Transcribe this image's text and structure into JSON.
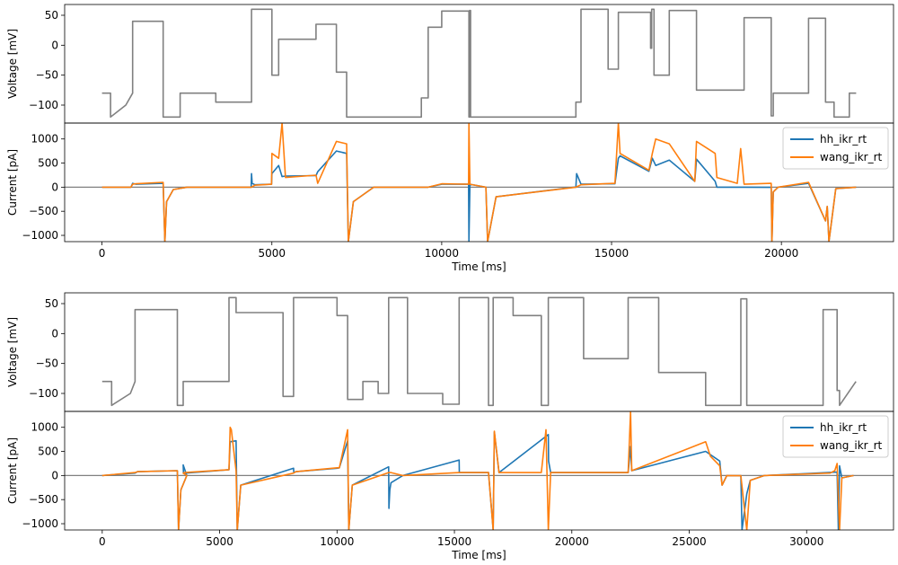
{
  "colors": {
    "voltage": "#808080",
    "series_a": "#1f77b4",
    "series_b": "#ff7f0e",
    "zero_line": "#808080"
  },
  "chart_data": [
    {
      "type": "line",
      "panel": "top-voltage",
      "ylabel": "Voltage [mV]",
      "xlim": [
        -1100,
        23300
      ],
      "ylim": [
        -130,
        68
      ],
      "yticks": [
        -100,
        -50,
        0,
        50
      ],
      "grid": false,
      "series": [
        {
          "color": "#808080",
          "x": [
            0,
            250,
            250,
            700,
            900,
            900,
            1800,
            1800,
            2300,
            2300,
            3350,
            3350,
            4400,
            4400,
            5000,
            5000,
            5200,
            5200,
            6300,
            6300,
            6900,
            6900,
            7200,
            7200,
            9400,
            9400,
            9600,
            9600,
            10000,
            10000,
            10800,
            10800,
            10820,
            10820,
            10850,
            10850,
            11300,
            11300,
            13950,
            13950,
            14100,
            14100,
            14900,
            14900,
            15200,
            15200,
            16150,
            16150,
            16180,
            16180,
            16250,
            16250,
            16700,
            16700,
            17500,
            17500,
            18050,
            18050,
            18900,
            18900,
            19700,
            19700,
            19760,
            19760,
            20800,
            20800,
            21300,
            21300,
            21550,
            21550,
            22000,
            22000,
            22200
          ],
          "y": [
            -80,
            -80,
            -120,
            -100,
            -80,
            40,
            40,
            -120,
            -120,
            -80,
            -80,
            -95,
            -95,
            60,
            60,
            -50,
            -50,
            10,
            10,
            35,
            35,
            -45,
            -45,
            -120,
            -120,
            -88,
            -88,
            30,
            30,
            57,
            57,
            -120,
            -120,
            58,
            58,
            -120,
            -120,
            -120,
            -120,
            -95,
            -95,
            60,
            60,
            -40,
            -40,
            55,
            55,
            -5,
            -5,
            60,
            60,
            -50,
            -50,
            58,
            58,
            -75,
            -75,
            -75,
            -75,
            46,
            46,
            -118,
            -118,
            -80,
            -80,
            45,
            45,
            -95,
            -95,
            -120,
            -120,
            -80,
            -80
          ]
        }
      ]
    },
    {
      "type": "line",
      "panel": "top-current",
      "ylabel": "Current [pA]",
      "xlabel": "Time [ms]",
      "xlim": [
        -1100,
        23300
      ],
      "ylim": [
        -1130,
        1330
      ],
      "xticks": [
        0,
        5000,
        10000,
        15000,
        20000
      ],
      "yticks": [
        -1000,
        -500,
        0,
        500,
        1000
      ],
      "grid": false,
      "legend": "upper-right",
      "series": [
        {
          "name": "hh_ikr_rt",
          "color": "#1f77b4",
          "x": [
            0,
            850,
            900,
            1000,
            1800,
            1850,
            1900,
            2100,
            2500,
            4390,
            4400,
            4420,
            4500,
            4990,
            5000,
            5200,
            5300,
            5400,
            6300,
            6350,
            6900,
            7200,
            7250,
            7400,
            8000,
            9400,
            9600,
            10000,
            10790,
            10800,
            10830,
            11300,
            11350,
            11600,
            13900,
            13950,
            13970,
            14100,
            15100,
            15200,
            15250,
            16100,
            16200,
            16300,
            16700,
            17450,
            17500,
            18050,
            18100,
            18900,
            19700,
            19720,
            19760,
            19900,
            20800,
            21300,
            21350,
            21400,
            21600,
            22200
          ],
          "y": [
            0,
            0,
            80,
            60,
            80,
            -1130,
            -300,
            -50,
            0,
            0,
            280,
            80,
            50,
            60,
            280,
            450,
            220,
            230,
            240,
            320,
            750,
            700,
            -1130,
            -300,
            0,
            0,
            0,
            60,
            60,
            -1130,
            60,
            0,
            -1130,
            -200,
            0,
            0,
            280,
            60,
            70,
            600,
            650,
            330,
            600,
            450,
            560,
            120,
            580,
            120,
            0,
            0,
            -5,
            -1130,
            -100,
            0,
            80,
            -700,
            -400,
            -1130,
            -30,
            0
          ]
        },
        {
          "name": "wang_ikr_rt",
          "color": "#ff7f0e",
          "x": [
            0,
            850,
            900,
            1000,
            1800,
            1850,
            1900,
            2100,
            2500,
            4400,
            4500,
            4990,
            5000,
            5200,
            5300,
            5400,
            6300,
            6350,
            6900,
            7200,
            7250,
            7400,
            8000,
            9400,
            9600,
            10000,
            10790,
            10800,
            10830,
            11300,
            11350,
            11600,
            13950,
            14100,
            15100,
            15200,
            15250,
            16100,
            16200,
            16300,
            16700,
            17450,
            17500,
            18050,
            18100,
            18700,
            18800,
            18900,
            19700,
            19720,
            19760,
            19900,
            20800,
            21300,
            21350,
            21400,
            21600,
            22200
          ],
          "y": [
            0,
            0,
            60,
            70,
            100,
            -1130,
            -300,
            -50,
            0,
            0,
            40,
            60,
            700,
            600,
            1330,
            200,
            250,
            80,
            950,
            900,
            -1130,
            -300,
            0,
            0,
            0,
            70,
            60,
            1330,
            60,
            0,
            -1130,
            -200,
            0,
            50,
            80,
            1330,
            700,
            350,
            700,
            1000,
            900,
            120,
            950,
            700,
            200,
            80,
            800,
            60,
            80,
            -1130,
            -100,
            0,
            100,
            -700,
            -400,
            -1130,
            -30,
            0
          ]
        }
      ]
    },
    {
      "type": "line",
      "panel": "bottom-voltage",
      "ylabel": "Voltage [mV]",
      "xlim": [
        -1600,
        33700
      ],
      "ylim": [
        -130,
        68
      ],
      "yticks": [
        -100,
        -50,
        0,
        50
      ],
      "grid": false,
      "series": [
        {
          "color": "#808080",
          "x": [
            0,
            400,
            400,
            1200,
            1400,
            1400,
            3200,
            3200,
            3450,
            3450,
            5400,
            5400,
            5700,
            5700,
            7700,
            7700,
            8150,
            8150,
            10000,
            10000,
            10450,
            10450,
            11100,
            11100,
            11750,
            11750,
            12200,
            12200,
            13000,
            13000,
            14500,
            14500,
            15200,
            15200,
            16450,
            16450,
            16650,
            16650,
            17500,
            17500,
            18700,
            18700,
            19000,
            19000,
            20500,
            20500,
            22400,
            22400,
            22500,
            22500,
            23700,
            23700,
            25700,
            25700,
            27200,
            27200,
            27450,
            27450,
            30700,
            30700,
            31300,
            31300,
            31400,
            31400,
            32100
          ],
          "y": [
            -80,
            -80,
            -120,
            -100,
            -80,
            40,
            40,
            -120,
            -120,
            -80,
            -80,
            60,
            60,
            35,
            35,
            -105,
            -105,
            60,
            60,
            30,
            30,
            -110,
            -110,
            -80,
            -80,
            -100,
            -100,
            60,
            60,
            -100,
            -100,
            -118,
            -118,
            60,
            60,
            -120,
            -120,
            60,
            60,
            30,
            30,
            -120,
            -120,
            60,
            60,
            -42,
            -42,
            60,
            60,
            60,
            60,
            -65,
            -65,
            -120,
            -120,
            58,
            58,
            -120,
            -120,
            40,
            40,
            -95,
            -95,
            -120,
            -80
          ]
        }
      ]
    },
    {
      "type": "line",
      "panel": "bottom-current",
      "ylabel": "Current [pA]",
      "xlabel": "Time [ms]",
      "xlim": [
        -1600,
        33700
      ],
      "ylim": [
        -1130,
        1330
      ],
      "xticks": [
        0,
        5000,
        10000,
        15000,
        20000,
        25000,
        30000
      ],
      "yticks": [
        -1000,
        -500,
        0,
        500,
        1000
      ],
      "grid": false,
      "legend": "upper-right",
      "series": [
        {
          "name": "hh_ikr_rt",
          "color": "#1f77b4",
          "x": [
            0,
            1400,
            1500,
            3200,
            3250,
            3350,
            3600,
            3450,
            3460,
            3550,
            5400,
            5450,
            5700,
            5750,
            5900,
            8150,
            8160,
            8250,
            10000,
            10100,
            10450,
            10500,
            10650,
            12200,
            12210,
            12250,
            12300,
            12800,
            15200,
            15210,
            15300,
            16450,
            16650,
            16700,
            16900,
            19000,
            19010,
            19100,
            22400,
            22500,
            22550,
            25700,
            26300,
            26400,
            26600,
            27200,
            27250,
            27450,
            27600,
            28200,
            31300,
            31350,
            31400,
            31500,
            32000
          ],
          "y": [
            0,
            50,
            80,
            100,
            -1130,
            -300,
            0,
            220,
            60,
            50,
            120,
            700,
            720,
            -1130,
            -200,
            150,
            60,
            80,
            150,
            160,
            720,
            -1130,
            -200,
            180,
            -680,
            -300,
            -150,
            0,
            320,
            60,
            60,
            60,
            -1130,
            900,
            60,
            850,
            300,
            60,
            60,
            600,
            100,
            500,
            300,
            -200,
            0,
            -5,
            -1130,
            -380,
            -100,
            0,
            70,
            -1130,
            200,
            -50,
            0
          ]
        },
        {
          "name": "wang_ikr_rt",
          "color": "#ff7f0e",
          "x": [
            0,
            1400,
            1500,
            3200,
            3250,
            3350,
            3600,
            3450,
            3500,
            5400,
            5450,
            5500,
            5700,
            5750,
            5900,
            8150,
            8250,
            10000,
            10100,
            10450,
            10500,
            10650,
            12200,
            12300,
            12800,
            15200,
            15300,
            16450,
            16650,
            16700,
            16900,
            18700,
            18900,
            19000,
            19100,
            22400,
            22500,
            22550,
            25700,
            25900,
            26300,
            26400,
            26600,
            27200,
            27450,
            27600,
            28200,
            31000,
            31200,
            31300,
            31400,
            31500,
            32000
          ],
          "y": [
            0,
            60,
            80,
            100,
            -1130,
            -300,
            0,
            50,
            60,
            120,
            1000,
            950,
            100,
            -1130,
            -200,
            50,
            80,
            160,
            160,
            950,
            -1130,
            -200,
            60,
            60,
            0,
            60,
            60,
            60,
            -1130,
            920,
            60,
            60,
            950,
            -1130,
            60,
            60,
            1330,
            100,
            700,
            400,
            200,
            -200,
            0,
            -5,
            -1130,
            -100,
            0,
            50,
            100,
            250,
            -1130,
            -50,
            0
          ]
        }
      ]
    }
  ]
}
